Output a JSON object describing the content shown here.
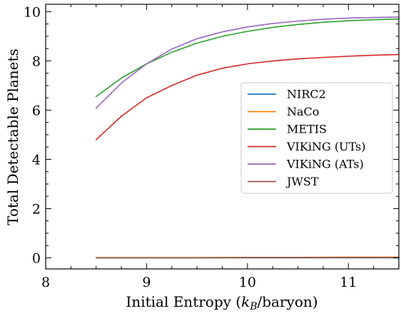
{
  "chart_data": {
    "type": "line",
    "xlabel_main": "Initial Entropy (",
    "xlabel_sym": "k",
    "xlabel_sub": "B",
    "xlabel_tail": "/baryon)",
    "ylabel": "Total Detectable Planets",
    "xlim": [
      8.0,
      11.5
    ],
    "ylim": [
      -0.45,
      10.3
    ],
    "x_ticks": [
      8,
      9,
      10,
      11
    ],
    "y_ticks": [
      0,
      2,
      4,
      6,
      8,
      10
    ],
    "legend_position": "center-right",
    "grid": false,
    "series": [
      {
        "name": "NIRC2",
        "color": "#1f77b4",
        "x": [
          8.5,
          9.0,
          9.5,
          10.0,
          10.5,
          11.0,
          11.5
        ],
        "y": [
          0.0,
          0.0,
          0.0,
          0.0,
          0.0,
          0.0,
          0.0
        ]
      },
      {
        "name": "NaCo",
        "color": "#ff7f0e",
        "x": [
          8.5,
          9.0,
          9.5,
          10.0,
          10.5,
          11.0,
          11.5
        ],
        "y": [
          0.01,
          0.01,
          0.01,
          0.02,
          0.02,
          0.03,
          0.03
        ]
      },
      {
        "name": "METIS",
        "color": "#2ca02c",
        "x": [
          8.5,
          8.75,
          9.0,
          9.25,
          9.5,
          9.75,
          10.0,
          10.25,
          10.5,
          10.75,
          11.0,
          11.25,
          11.5
        ],
        "y": [
          6.55,
          7.3,
          7.88,
          8.35,
          8.72,
          9.0,
          9.2,
          9.36,
          9.48,
          9.57,
          9.63,
          9.67,
          9.7
        ]
      },
      {
        "name": "VIKiNG (UTs)",
        "color": "#d62728",
        "x": [
          8.5,
          8.75,
          9.0,
          9.25,
          9.5,
          9.75,
          10.0,
          10.25,
          10.5,
          10.75,
          11.0,
          11.25,
          11.5
        ],
        "y": [
          4.8,
          5.75,
          6.5,
          7.0,
          7.42,
          7.7,
          7.88,
          8.0,
          8.08,
          8.14,
          8.19,
          8.23,
          8.26
        ]
      },
      {
        "name": "VIKiNG (ATs)",
        "color": "#9467bd",
        "x": [
          8.5,
          8.75,
          9.0,
          9.25,
          9.5,
          9.75,
          10.0,
          10.25,
          10.5,
          10.75,
          11.0,
          11.25,
          11.5
        ],
        "y": [
          6.08,
          7.1,
          7.88,
          8.48,
          8.9,
          9.18,
          9.38,
          9.52,
          9.62,
          9.69,
          9.74,
          9.76,
          9.78
        ]
      },
      {
        "name": "JWST",
        "color": "#8c564b",
        "x": [
          8.5,
          9.0,
          9.5,
          10.0,
          10.5,
          11.0,
          11.5
        ],
        "y": [
          0.0,
          0.0,
          0.0,
          0.01,
          0.01,
          0.01,
          0.01
        ]
      }
    ]
  }
}
